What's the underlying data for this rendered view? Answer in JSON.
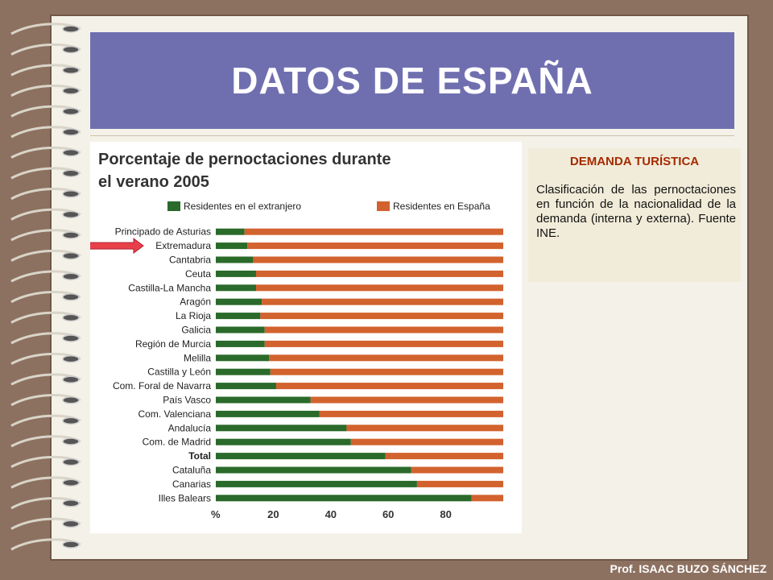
{
  "slide": {
    "title": "DATOS DE ESPAÑA",
    "footer": "Prof. ISAAC BUZO SÁNCHEZ"
  },
  "info_box": {
    "heading": "DEMANDA TURÍSTICA",
    "body": "Clasificación de las pernoctaciones en función de la nacionalidad de la demanda (interna y externa). Fuente INE."
  },
  "colors": {
    "title_bg": "#6f6fb0",
    "foreign": "#2a6a2a",
    "domestic": "#d2622e",
    "arrow": "#e8404a",
    "info_heading": "#a52a00"
  },
  "chart_data": {
    "type": "bar",
    "orientation": "horizontal",
    "stacked": true,
    "title": "Porcentaje de pernoctaciones durante el verano 2005",
    "title_lines": [
      "Porcentaje de pernoctaciones durante",
      "el verano 2005"
    ],
    "xlabel": "%",
    "xlim": [
      0,
      100
    ],
    "xticks": [
      20,
      40,
      60,
      80
    ],
    "legend_placement": "top",
    "highlight_category": "Extremadura",
    "categories": [
      "Principado de Asturias",
      "Extremadura",
      "Cantabria",
      "Ceuta",
      "Castilla-La Mancha",
      "Aragón",
      "La Rioja",
      "Galicia",
      "Región de Murcia",
      "Melilla",
      "Castilla y León",
      "Com. Foral de Navarra",
      "País Vasco",
      "Com. Valenciana",
      "Andalucía",
      "Com. de Madrid",
      "Total",
      "Cataluña",
      "Canarias",
      "Illes Balears"
    ],
    "series": [
      {
        "name": "Residentes en el extranjero",
        "color": "#2a6a2a",
        "values": [
          10,
          11,
          13,
          14,
          14,
          16,
          15.5,
          17,
          17,
          18.5,
          19,
          21,
          33,
          36,
          45.5,
          47,
          59,
          68,
          70,
          89
        ]
      },
      {
        "name": "Residentes en España",
        "color": "#d2622e",
        "values": [
          90,
          89,
          87,
          86,
          86,
          84,
          84.5,
          83,
          83,
          81.5,
          81,
          79,
          67,
          64,
          54.5,
          53,
          41,
          32,
          30,
          11
        ]
      }
    ]
  }
}
